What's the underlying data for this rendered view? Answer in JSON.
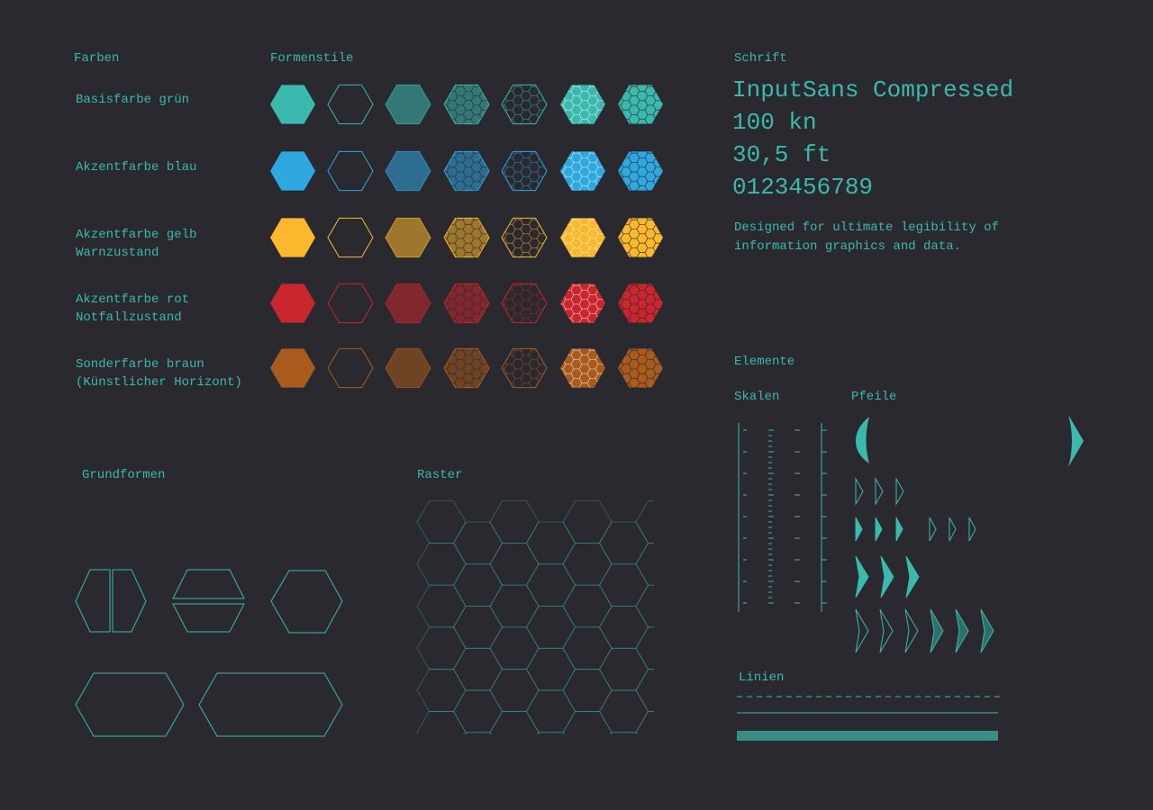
{
  "colors": {
    "title": "Farben",
    "rows": [
      {
        "label": [
          "Basisfarbe grün"
        ],
        "color": "#3bb9ae"
      },
      {
        "label": [
          "Akzentfarbe blau"
        ],
        "color": "#2fa8e0"
      },
      {
        "label": [
          "Akzentfarbe gelb",
          "Warnzustand"
        ],
        "color": "#fbb82c"
      },
      {
        "label": [
          "Akzentfarbe rot",
          "Notfallzustand"
        ],
        "color": "#c9262e"
      },
      {
        "label": [
          "Sonderfarbe braun",
          "(Künstlicher Horizont)"
        ],
        "color": "#a85b1c"
      }
    ]
  },
  "styles": {
    "title": "Formenstile"
  },
  "font": {
    "title": "Schrift",
    "samples": [
      "InputSans Compressed",
      "100 kn",
      "30,5 ft",
      "0123456789"
    ],
    "description": [
      "Designed for ultimate legibility of",
      "information graphics and data."
    ]
  },
  "elements": {
    "title": "Elemente",
    "scales": "Skalen",
    "arrows": "Pfeile",
    "lines": "Linien"
  },
  "shapes": {
    "title": "Grundformen"
  },
  "grid": {
    "title": "Raster"
  }
}
